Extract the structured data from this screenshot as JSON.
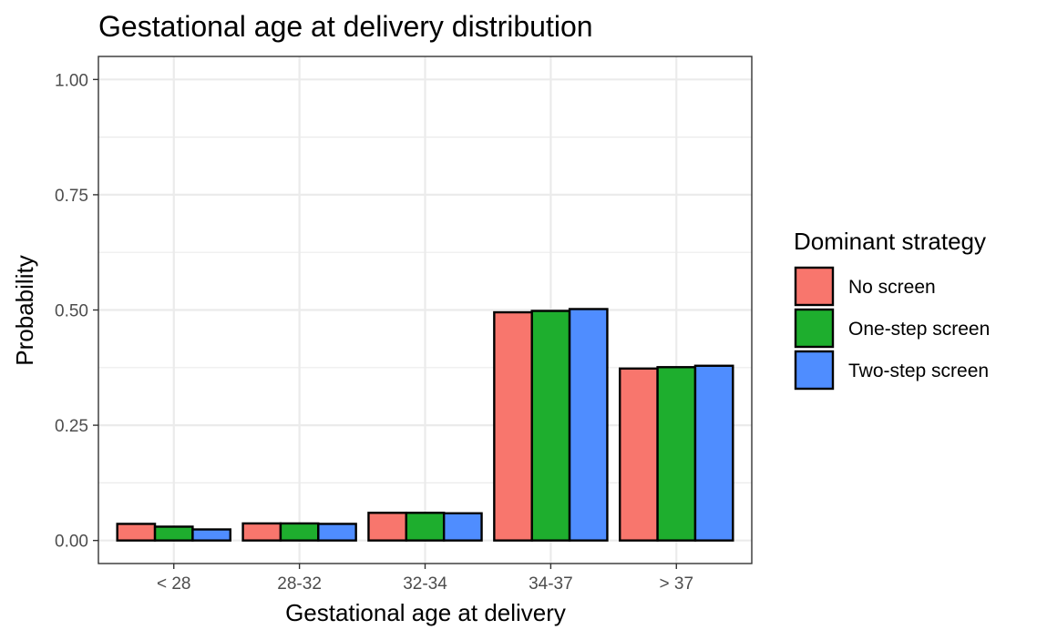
{
  "chart_data": {
    "type": "bar",
    "title": "Gestational age at delivery distribution",
    "xlabel": "Gestational age at delivery",
    "ylabel": "Probability",
    "categories": [
      "< 28",
      "28-32",
      "32-34",
      "34-37",
      "> 37"
    ],
    "series": [
      {
        "name": "No screen",
        "color": "#F8766D",
        "values": [
          0.036,
          0.037,
          0.06,
          0.495,
          0.373
        ]
      },
      {
        "name": "One-step screen",
        "color": "#1EAE2E",
        "values": [
          0.03,
          0.037,
          0.06,
          0.498,
          0.376
        ]
      },
      {
        "name": "Two-step screen",
        "color": "#4F8DFF",
        "values": [
          0.024,
          0.036,
          0.059,
          0.502,
          0.379
        ]
      }
    ],
    "ylim": [
      -0.05,
      1.05
    ],
    "yticks": [
      {
        "value": 0,
        "label": "0.00"
      },
      {
        "value": 0.25,
        "label": "0.25"
      },
      {
        "value": 0.5,
        "label": "0.50"
      },
      {
        "value": 0.75,
        "label": "0.75"
      },
      {
        "value": 1,
        "label": "1.00"
      }
    ],
    "grid": true,
    "legend": {
      "title": "Dominant strategy",
      "position": "right"
    }
  }
}
